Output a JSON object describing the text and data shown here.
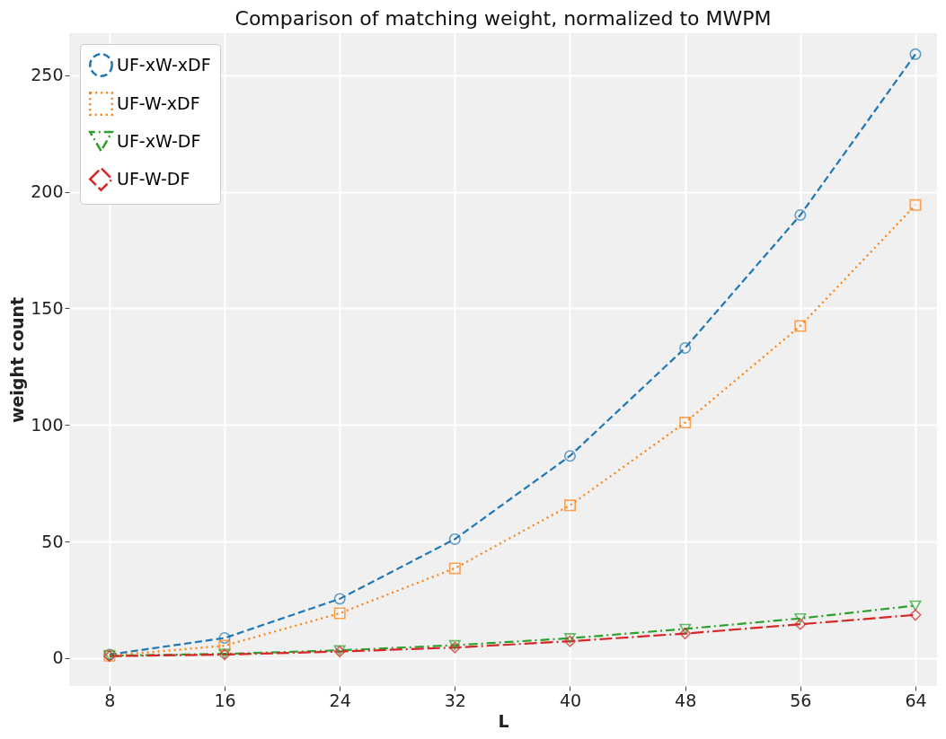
{
  "chart_data": {
    "type": "line",
    "title": "Comparison of matching weight, normalized to MWPM",
    "xlabel": "L",
    "ylabel": "weight count",
    "x": [
      8,
      16,
      24,
      32,
      40,
      48,
      56,
      64
    ],
    "series": [
      {
        "name": "UF-xW-xDF",
        "color": "#1f77b4",
        "line_style": "dashed",
        "marker": "circle",
        "values": [
          1.5,
          8.6,
          25.4,
          51,
          86.7,
          133,
          190,
          259
        ]
      },
      {
        "name": "UF-W-xDF",
        "color": "#ff7f0e",
        "line_style": "dotted",
        "marker": "square",
        "values": [
          1,
          5.3,
          19.2,
          38.5,
          65.5,
          101,
          142.4,
          194.3
        ]
      },
      {
        "name": "UF-xW-DF",
        "color": "#2ca02c",
        "line_style": "dashdot",
        "marker": "triangle",
        "values": [
          1,
          1.8,
          3.3,
          5.5,
          8.5,
          12.5,
          17,
          22.5
        ]
      },
      {
        "name": "UF-W-DF",
        "color": "#d62728",
        "line_style": "longdash",
        "marker": "diamond",
        "values": [
          0.8,
          1.5,
          2.8,
          4.5,
          7.2,
          10.5,
          14.5,
          18.5
        ]
      }
    ],
    "xlim": [
      5.2,
      65.5
    ],
    "xticks": [
      8,
      16,
      24,
      32,
      40,
      48,
      56,
      64
    ],
    "ylim": [
      -12,
      268
    ],
    "yticks": [
      0,
      50,
      100,
      150,
      200,
      250
    ],
    "grid": true,
    "legend": "top left"
  }
}
